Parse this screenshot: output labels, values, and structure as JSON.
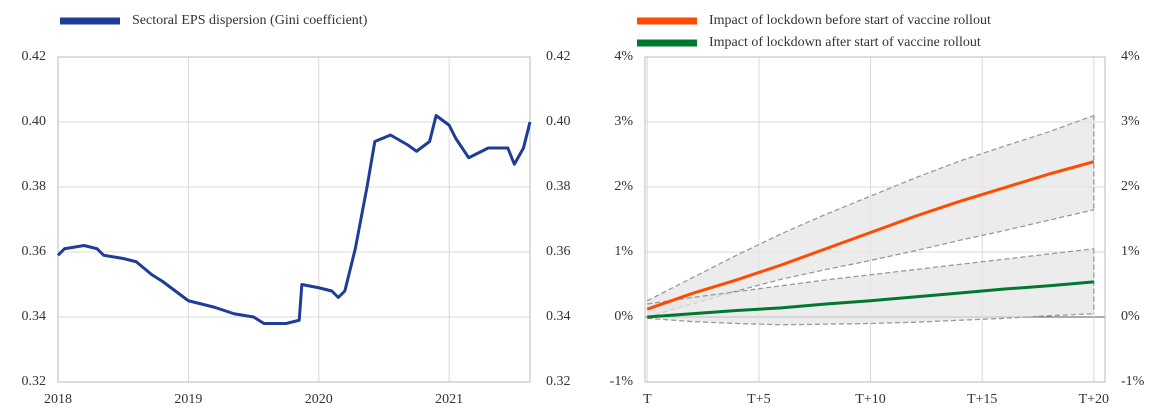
{
  "chart_data": [
    {
      "type": "line",
      "legend": "top-left",
      "grid": true,
      "x": [
        2018.0,
        2018.05,
        2018.2,
        2018.3,
        2018.35,
        2018.5,
        2018.6,
        2018.72,
        2018.8,
        2018.9,
        2019.0,
        2019.1,
        2019.2,
        2019.35,
        2019.5,
        2019.58,
        2019.75,
        2019.85,
        2019.87,
        2020.0,
        2020.1,
        2020.15,
        2020.2,
        2020.28,
        2020.37,
        2020.43,
        2020.55,
        2020.68,
        2020.75,
        2020.85,
        2020.9,
        2021.0,
        2021.05,
        2021.15,
        2021.3,
        2021.45,
        2021.5,
        2021.57,
        2021.62
      ],
      "series": [
        {
          "name": "Sectoral EPS dispersion (Gini coefficient)",
          "color": "#1f3c96",
          "values": [
            0.359,
            0.361,
            0.362,
            0.361,
            0.359,
            0.358,
            0.357,
            0.353,
            0.351,
            0.348,
            0.345,
            0.344,
            0.343,
            0.341,
            0.34,
            0.338,
            0.338,
            0.339,
            0.35,
            0.349,
            0.348,
            0.346,
            0.348,
            0.361,
            0.38,
            0.394,
            0.396,
            0.393,
            0.391,
            0.394,
            0.402,
            0.399,
            0.395,
            0.389,
            0.392,
            0.392,
            0.387,
            0.392,
            0.4
          ]
        }
      ],
      "xlim": [
        2018,
        2021.62
      ],
      "xticks": [
        2018,
        2019,
        2020,
        2021
      ],
      "ylim": [
        0.32,
        0.42
      ],
      "yticks": [
        0.32,
        0.34,
        0.36,
        0.38,
        {
          "value": 0.4,
          "label": "0.40"
        },
        0.42
      ]
    },
    {
      "type": "line",
      "legend": "top-left",
      "grid": true,
      "x": [
        0,
        2,
        4,
        6,
        8,
        10,
        12,
        14,
        16,
        18,
        20
      ],
      "series": [
        {
          "name": "Impact of lockdown before start of vaccine rollout",
          "color": "#ff4b00",
          "values": [
            0.12,
            0.36,
            0.57,
            0.8,
            1.05,
            1.3,
            1.55,
            1.78,
            1.99,
            2.2,
            2.39
          ],
          "lower": [
            0.0,
            0.2,
            0.4,
            0.58,
            0.73,
            0.87,
            1.02,
            1.18,
            1.33,
            1.49,
            1.65
          ],
          "upper": [
            0.25,
            0.6,
            0.95,
            1.28,
            1.58,
            1.86,
            2.14,
            2.4,
            2.63,
            2.85,
            3.1
          ]
        },
        {
          "name": "Impact of lockdown after start of vaccine rollout",
          "color": "#00782f",
          "values": [
            0.0,
            0.05,
            0.1,
            0.14,
            0.2,
            0.25,
            0.31,
            0.37,
            0.43,
            0.48,
            0.54
          ],
          "lower": [
            -0.02,
            -0.07,
            -0.1,
            -0.12,
            -0.11,
            -0.1,
            -0.08,
            -0.05,
            -0.02,
            0.02,
            0.05
          ],
          "upper": [
            0.2,
            0.3,
            0.39,
            0.48,
            0.57,
            0.65,
            0.73,
            0.81,
            0.89,
            0.97,
            1.05
          ]
        }
      ],
      "xlim": [
        -0.1,
        20.5
      ],
      "xticks": [
        {
          "value": 0,
          "label": "T"
        },
        {
          "value": 5,
          "label": "T+5"
        },
        {
          "value": 10,
          "label": "T+10"
        },
        {
          "value": 15,
          "label": "T+15"
        },
        {
          "value": 20,
          "label": "T+20"
        }
      ],
      "ylim": [
        -1,
        4
      ],
      "yticks": [
        {
          "value": -1,
          "label": "-1%"
        },
        {
          "value": 0,
          "label": "0%"
        },
        {
          "value": 1,
          "label": "1%"
        },
        {
          "value": 2,
          "label": "2%"
        },
        {
          "value": 3,
          "label": "3%"
        },
        {
          "value": 4,
          "label": "4%"
        }
      ]
    }
  ]
}
